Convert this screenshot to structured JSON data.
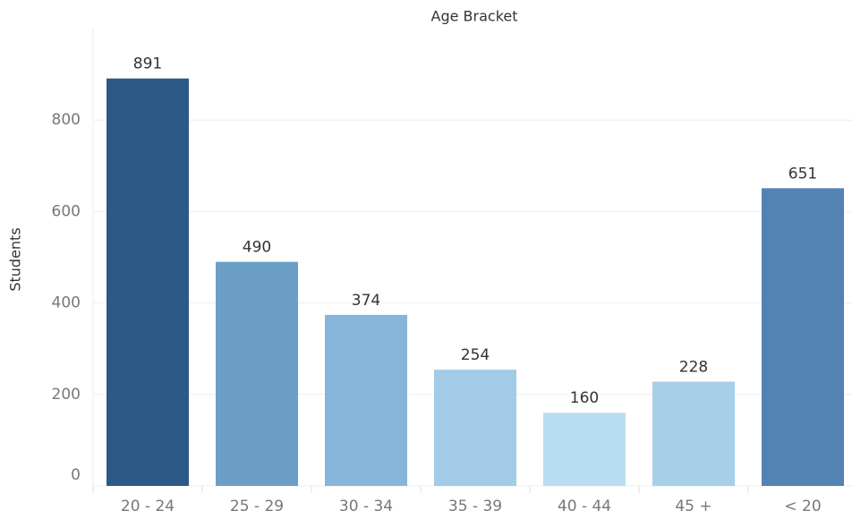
{
  "chart_data": {
    "type": "bar",
    "title": "Age Bracket",
    "y_label": "Students",
    "categories": [
      "20 - 24",
      "25 - 29",
      "30 - 34",
      "35 - 39",
      "40 - 44",
      "45 +",
      "< 20"
    ],
    "values": [
      891,
      490,
      374,
      254,
      160,
      228,
      651
    ],
    "colors": [
      "#2c5985",
      "#6b9fc7",
      "#86b5d9",
      "#a1cbe6",
      "#b9ddf0",
      "#a6cfe8",
      "#5283b3"
    ],
    "ylim": [
      0,
      1000
    ],
    "yticks": [
      0,
      200,
      400,
      600,
      800
    ],
    "grid": true
  }
}
